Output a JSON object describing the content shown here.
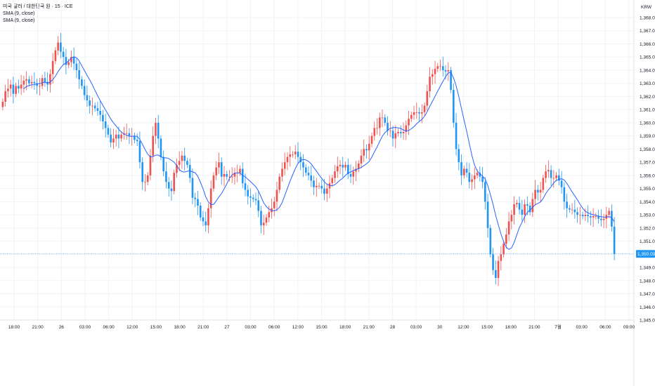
{
  "legend": {
    "symbol": "미국 달러 / 대한민국 원 · 15 · ICE",
    "sma1": "SMA (9, close)",
    "sma2": "SMA (9, close)"
  },
  "currency": "KRW",
  "colors": {
    "up": "#ef5350",
    "down": "#2196f3",
    "sma": "#2962ff",
    "price_line": "#2196f3",
    "grid": "#f0f3fa",
    "axis_text": "#131722"
  },
  "chart_data": {
    "type": "candlestick",
    "series_name": "USD/KRW",
    "ylim": [
      1345.0,
      1368.8
    ],
    "y_ticks": [
      "1,345.00",
      "1,346.00",
      "1,347.00",
      "1,348.00",
      "1,349.00",
      "1,350.00",
      "1,351.00",
      "1,352.00",
      "1,353.00",
      "1,354.00",
      "1,355.00",
      "1,356.00",
      "1,357.00",
      "1,358.00",
      "1,359.00",
      "1,360.00",
      "1,361.00",
      "1,362.00",
      "1,363.00",
      "1,364.00",
      "1,365.00",
      "1,366.00",
      "1,367.00",
      "1,368.00"
    ],
    "x_ticks": [
      "18:00",
      "21:00",
      "26",
      "03:00",
      "06:00",
      "12:00",
      "15:00",
      "18:00",
      "21:00",
      "27",
      "03:00",
      "06:00",
      "12:00",
      "15:00",
      "18:00",
      "21:00",
      "28",
      "03:00",
      "30",
      "12:00",
      "15:00",
      "18:00",
      "21:00",
      "7월",
      "03:00",
      "06:00",
      "09:00"
    ],
    "last_price": "1,350.03",
    "last_price_value": 1350.03,
    "sma_period": 9,
    "closes": [
      1361.6,
      1362.4,
      1362.6,
      1362.9,
      1362.2,
      1362.8,
      1362.6,
      1362.9,
      1363.2,
      1363.3,
      1363.0,
      1363.1,
      1363.0,
      1362.8,
      1362.8,
      1363.4,
      1363.1,
      1362.9,
      1363.7,
      1364.7,
      1365.5,
      1366.1,
      1365.4,
      1365.0,
      1364.4,
      1364.6,
      1365.0,
      1364.5,
      1364.0,
      1363.3,
      1362.8,
      1362.1,
      1361.7,
      1361.3,
      1361.3,
      1361.1,
      1360.9,
      1360.6,
      1360.1,
      1359.6,
      1359.1,
      1358.5,
      1358.8,
      1359.1,
      1358.8,
      1359.1,
      1359.2,
      1359.2,
      1359.0,
      1359.0,
      1358.7,
      1358.6,
      1357.0,
      1355.5,
      1355.5,
      1356.0,
      1357.5,
      1359.0,
      1360.0,
      1358.8,
      1357.4,
      1356.3,
      1355.5,
      1355.0,
      1354.8,
      1356.2,
      1356.8,
      1357.1,
      1357.5,
      1357.1,
      1356.8,
      1355.8,
      1354.3,
      1354.2,
      1353.7,
      1352.8,
      1352.5,
      1352.2,
      1353.5,
      1355.0,
      1356.0,
      1356.6,
      1357.0,
      1355.9,
      1356.1,
      1355.9,
      1355.9,
      1355.9,
      1356.2,
      1356.2,
      1356.5,
      1355.4,
      1354.9,
      1354.4,
      1354.3,
      1354.2,
      1354.1,
      1353.3,
      1352.2,
      1352.4,
      1352.8,
      1353.2,
      1353.5,
      1354.0,
      1354.9,
      1355.9,
      1356.5,
      1357.0,
      1357.4,
      1357.6,
      1357.6,
      1357.8,
      1357.4,
      1357.0,
      1356.6,
      1356.2,
      1356.0,
      1355.6,
      1355.1,
      1355.2,
      1355.2,
      1355.0,
      1354.6,
      1355.0,
      1355.4,
      1355.8,
      1356.3,
      1356.7,
      1356.8,
      1356.6,
      1356.8,
      1356.1,
      1355.9,
      1356.3,
      1356.5,
      1356.9,
      1357.5,
      1358.0,
      1357.9,
      1358.4,
      1359.0,
      1359.6,
      1359.6,
      1360.4,
      1360.4,
      1360.0,
      1359.4,
      1359.4,
      1358.8,
      1359.2,
      1359.3,
      1359.2,
      1359.3,
      1359.8,
      1360.3,
      1360.6,
      1360.8,
      1360.8,
      1360.7,
      1360.8,
      1361.3,
      1362.4,
      1363.5,
      1363.7,
      1364.1,
      1364.3,
      1364.3,
      1364.0,
      1363.9,
      1364.0,
      1362.5,
      1360.0,
      1358.0,
      1357.0,
      1356.0,
      1356.5,
      1356.2,
      1355.5,
      1355.7,
      1356.0,
      1356.2,
      1355.9,
      1355.5,
      1354.0,
      1352.0,
      1350.0,
      1348.8,
      1348.2,
      1349.5,
      1350.0,
      1350.8,
      1351.5,
      1352.5,
      1353.0,
      1353.8,
      1353.9,
      1353.4,
      1353.0,
      1353.8,
      1353.7,
      1353.2,
      1354.2,
      1354.9,
      1354.7,
      1354.9,
      1355.8,
      1356.3,
      1356.4,
      1355.8,
      1355.8,
      1356.0,
      1355.6,
      1355.1,
      1354.0,
      1353.5,
      1353.4,
      1353.4,
      1353.2,
      1353.0,
      1353.0,
      1352.9,
      1353.0,
      1352.9,
      1352.8,
      1352.9,
      1352.9,
      1352.7,
      1352.6,
      1352.7,
      1353.0,
      1353.3,
      1352.1,
      1350.03
    ]
  }
}
